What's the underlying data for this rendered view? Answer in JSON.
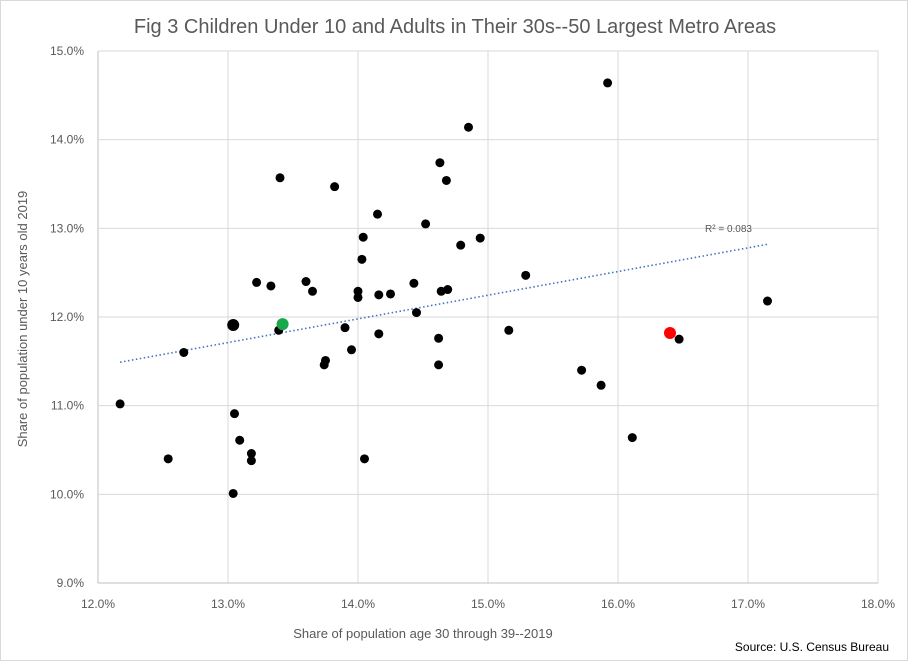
{
  "chart_data": {
    "type": "scatter",
    "title": "Fig 3 Children Under 10 and Adults in Their 30s--50 Largest Metro Areas",
    "xlabel": "Share of population  age 30 through  39--2019",
    "ylabel": "Share of population  under 10 years old 2019",
    "xlim": [
      0.12,
      0.18
    ],
    "ylim": [
      0.09,
      0.15
    ],
    "x_ticks": [
      "12.0%",
      "13.0%",
      "14.0%",
      "15.0%",
      "16.0%",
      "17.0%",
      "18.0%"
    ],
    "y_ticks": [
      "9.0%",
      "10.0%",
      "11.0%",
      "12.0%",
      "13.0%",
      "14.0%",
      "15.0%"
    ],
    "grid": "vertical and horizontal major gridlines",
    "trendline": {
      "type": "linear",
      "style": "dotted",
      "color": "#4472c4",
      "x": [
        0.1217,
        0.1715
      ],
      "y": [
        0.1149,
        0.1282
      ],
      "label": "R² = 0.083"
    },
    "source": "Source: U.S. Census Bureau",
    "points": [
      {
        "x": 0.1217,
        "y": 0.1102,
        "color": "#000000"
      },
      {
        "x": 0.1254,
        "y": 0.104,
        "color": "#000000"
      },
      {
        "x": 0.1266,
        "y": 0.116,
        "color": "#000000"
      },
      {
        "x": 0.1304,
        "y": 0.1191,
        "color": "#000000",
        "highlight": true
      },
      {
        "x": 0.1304,
        "y": 0.1001,
        "color": "#000000"
      },
      {
        "x": 0.1305,
        "y": 0.1091,
        "color": "#000000"
      },
      {
        "x": 0.1309,
        "y": 0.1061,
        "color": "#000000"
      },
      {
        "x": 0.1318,
        "y": 0.1046,
        "color": "#000000"
      },
      {
        "x": 0.1318,
        "y": 0.1038,
        "color": "#000000"
      },
      {
        "x": 0.1322,
        "y": 0.1239,
        "color": "#000000"
      },
      {
        "x": 0.1333,
        "y": 0.1235,
        "color": "#000000"
      },
      {
        "x": 0.1339,
        "y": 0.1185,
        "color": "#000000"
      },
      {
        "x": 0.134,
        "y": 0.1357,
        "color": "#000000"
      },
      {
        "x": 0.1342,
        "y": 0.1192,
        "color": "#1aa64a",
        "highlight": true
      },
      {
        "x": 0.136,
        "y": 0.124,
        "color": "#000000"
      },
      {
        "x": 0.1365,
        "y": 0.1229,
        "color": "#000000"
      },
      {
        "x": 0.1374,
        "y": 0.1146,
        "color": "#000000"
      },
      {
        "x": 0.1375,
        "y": 0.1151,
        "color": "#000000"
      },
      {
        "x": 0.1382,
        "y": 0.1347,
        "color": "#000000"
      },
      {
        "x": 0.139,
        "y": 0.1188,
        "color": "#000000"
      },
      {
        "x": 0.1395,
        "y": 0.1163,
        "color": "#000000"
      },
      {
        "x": 0.14,
        "y": 0.1229,
        "color": "#000000"
      },
      {
        "x": 0.14,
        "y": 0.1222,
        "color": "#000000"
      },
      {
        "x": 0.1403,
        "y": 0.1265,
        "color": "#000000"
      },
      {
        "x": 0.1404,
        "y": 0.129,
        "color": "#000000"
      },
      {
        "x": 0.1405,
        "y": 0.104,
        "color": "#000000"
      },
      {
        "x": 0.1415,
        "y": 0.1316,
        "color": "#000000"
      },
      {
        "x": 0.1416,
        "y": 0.1225,
        "color": "#000000"
      },
      {
        "x": 0.1416,
        "y": 0.1181,
        "color": "#000000"
      },
      {
        "x": 0.1425,
        "y": 0.1226,
        "color": "#000000"
      },
      {
        "x": 0.1443,
        "y": 0.1238,
        "color": "#000000"
      },
      {
        "x": 0.1445,
        "y": 0.1205,
        "color": "#000000"
      },
      {
        "x": 0.1452,
        "y": 0.1305,
        "color": "#000000"
      },
      {
        "x": 0.1462,
        "y": 0.1176,
        "color": "#000000"
      },
      {
        "x": 0.1462,
        "y": 0.1146,
        "color": "#000000"
      },
      {
        "x": 0.1463,
        "y": 0.1374,
        "color": "#000000"
      },
      {
        "x": 0.1464,
        "y": 0.1229,
        "color": "#000000"
      },
      {
        "x": 0.1468,
        "y": 0.1354,
        "color": "#000000"
      },
      {
        "x": 0.1469,
        "y": 0.1231,
        "color": "#000000"
      },
      {
        "x": 0.1479,
        "y": 0.1281,
        "color": "#000000"
      },
      {
        "x": 0.1485,
        "y": 0.1414,
        "color": "#000000"
      },
      {
        "x": 0.1494,
        "y": 0.1289,
        "color": "#000000"
      },
      {
        "x": 0.1516,
        "y": 0.1185,
        "color": "#000000"
      },
      {
        "x": 0.1529,
        "y": 0.1247,
        "color": "#000000"
      },
      {
        "x": 0.1572,
        "y": 0.114,
        "color": "#000000"
      },
      {
        "x": 0.1587,
        "y": 0.1123,
        "color": "#000000"
      },
      {
        "x": 0.1592,
        "y": 0.1464,
        "color": "#000000"
      },
      {
        "x": 0.1611,
        "y": 0.1064,
        "color": "#000000"
      },
      {
        "x": 0.164,
        "y": 0.1182,
        "color": "#ff0000",
        "highlight": true
      },
      {
        "x": 0.1647,
        "y": 0.1175,
        "color": "#000000"
      },
      {
        "x": 0.1715,
        "y": 0.1218,
        "color": "#000000"
      }
    ]
  }
}
